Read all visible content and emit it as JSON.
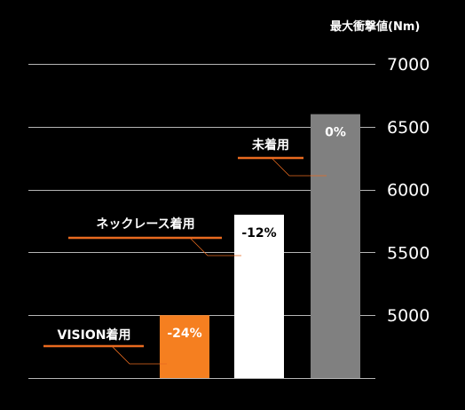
{
  "chart_data": {
    "type": "bar",
    "title": "",
    "xlabel": "",
    "ylabel": "最大衝撃値(Nm)",
    "ylim": [
      4500,
      7000
    ],
    "yticks": [
      5000,
      5500,
      6000,
      6500,
      7000
    ],
    "grid": true,
    "categories": [
      "VISION着用",
      "ネックレース着用",
      "未着用"
    ],
    "values": [
      5000,
      5800,
      6600
    ],
    "value_labels": [
      "-24%",
      "-12%",
      "0%"
    ],
    "colors": [
      "#f57f20",
      "#ffffff",
      "#808080"
    ],
    "value_label_colors": [
      "#ffffff",
      "#000000",
      "#ffffff"
    ],
    "underline_color": "#e86a1f",
    "gridline_color": "#b5b5b5"
  }
}
